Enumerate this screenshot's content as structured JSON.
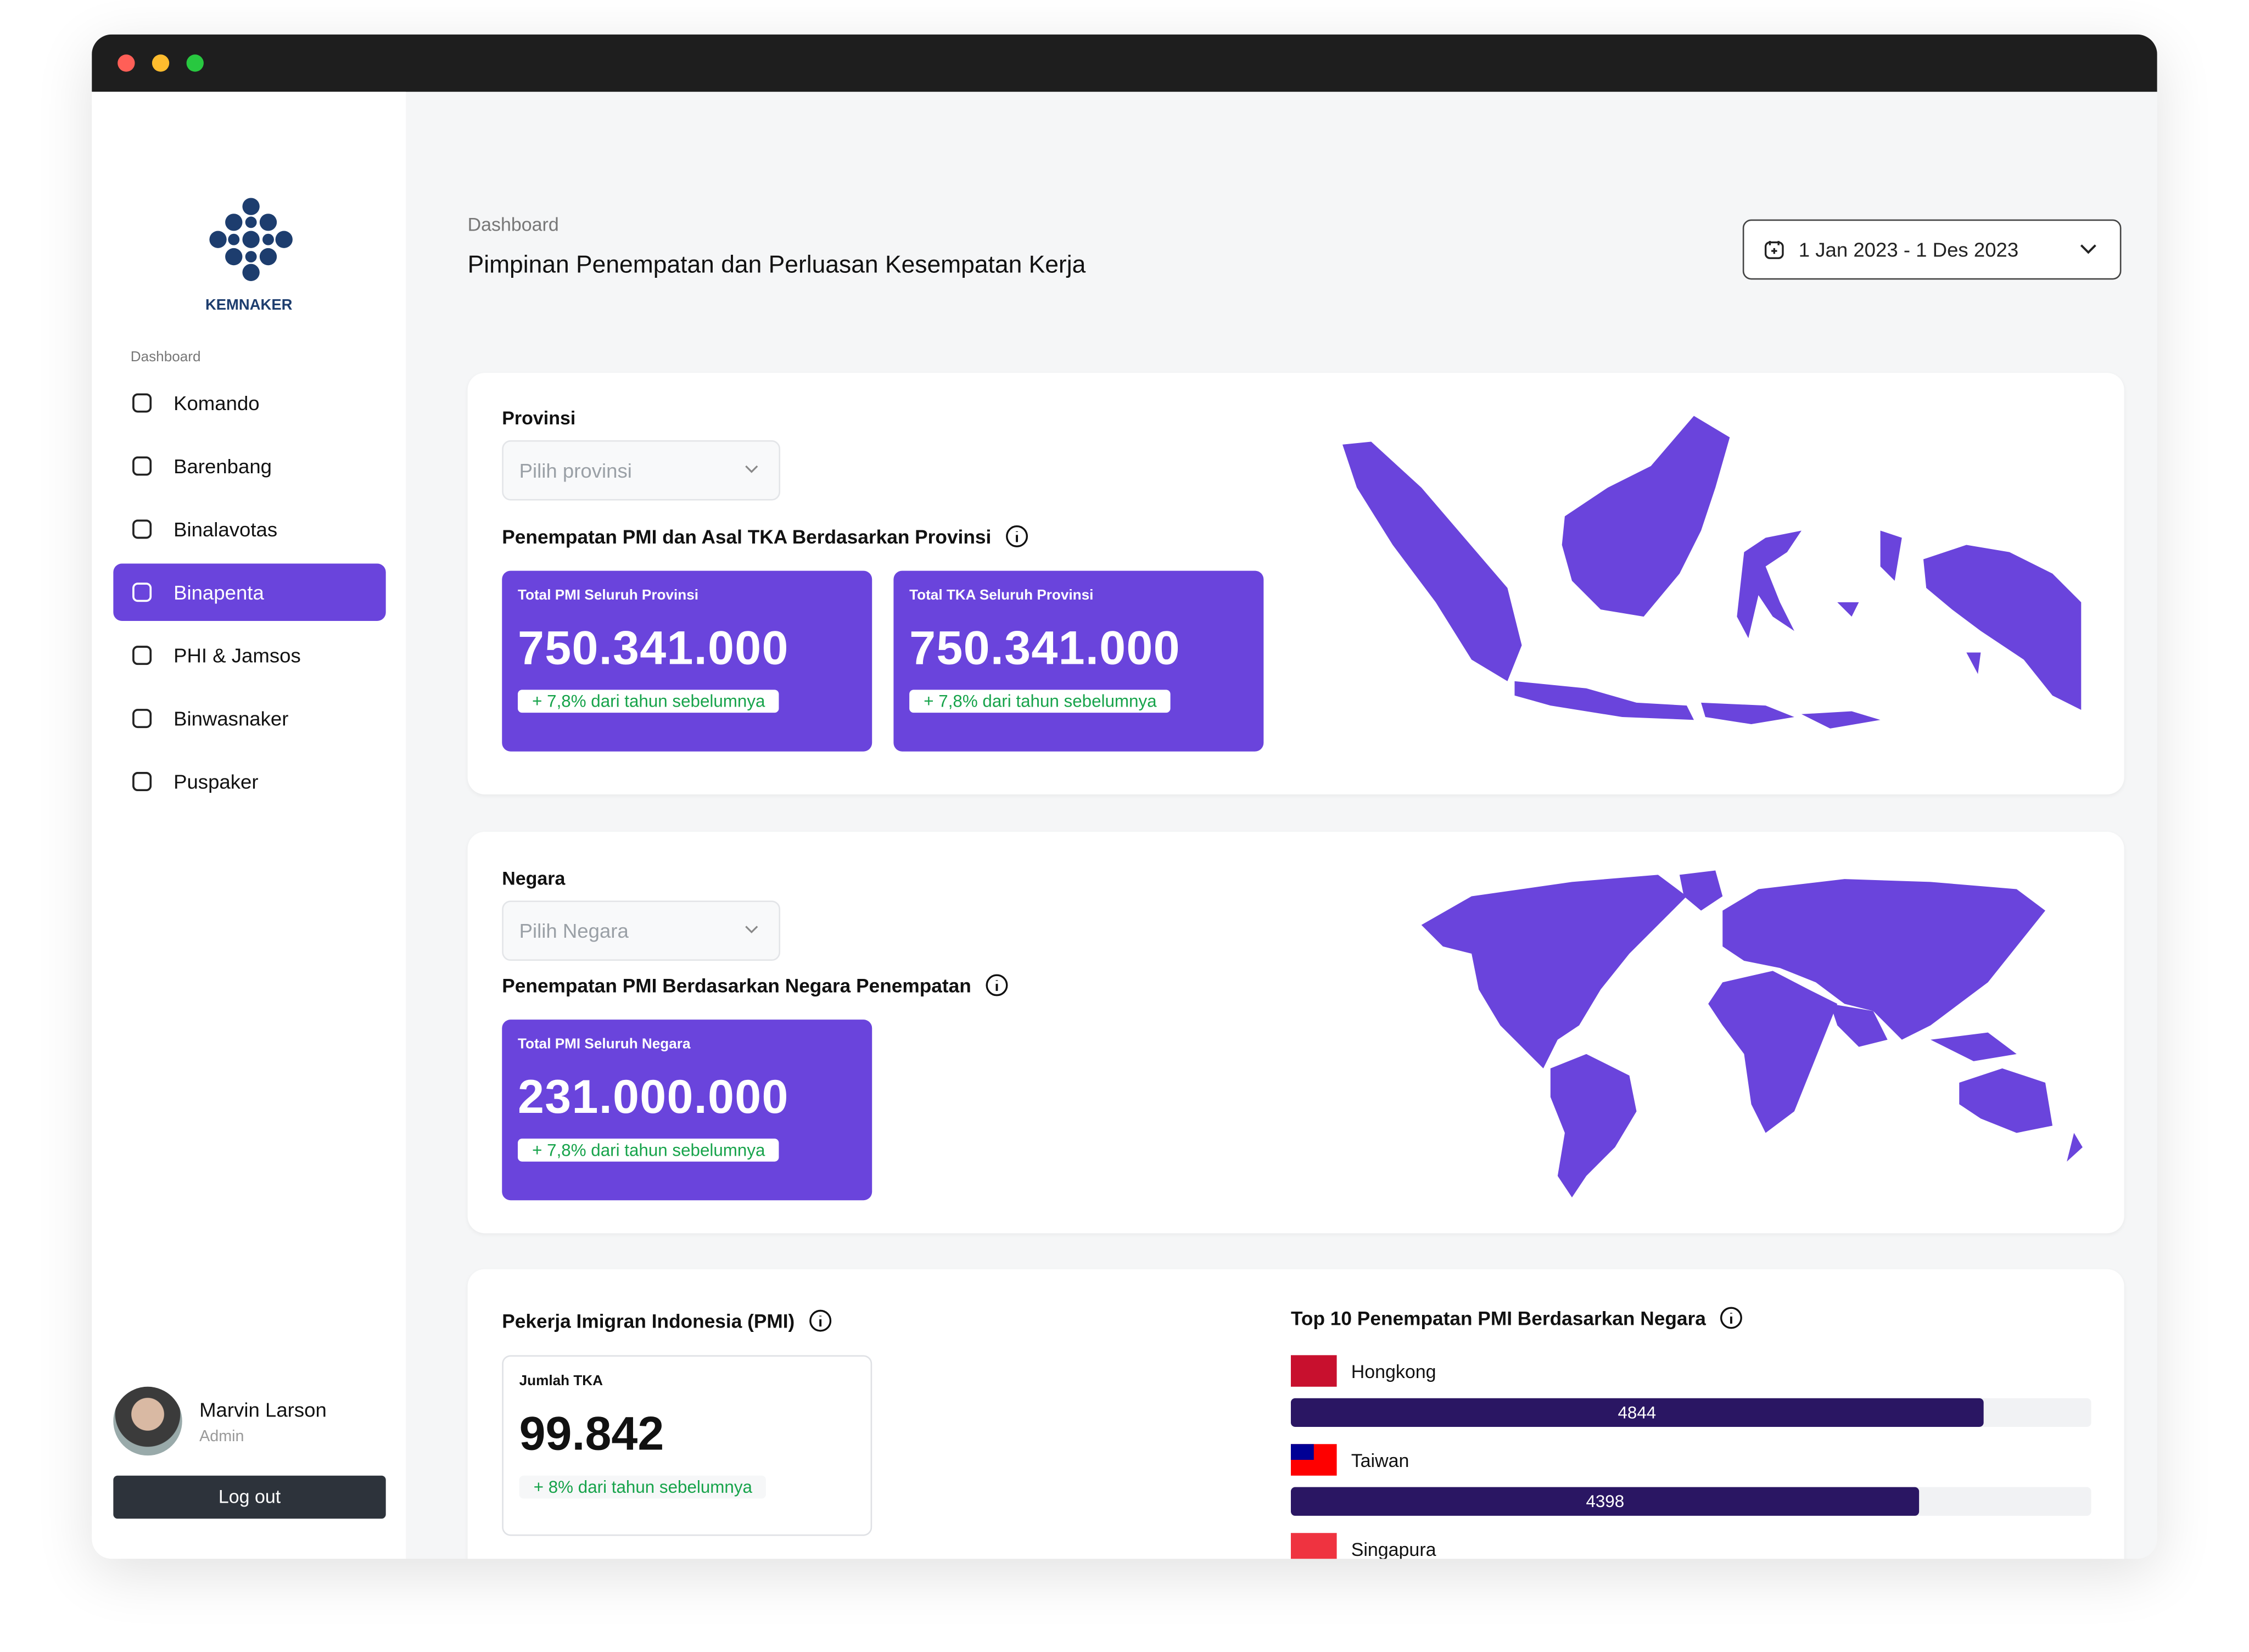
{
  "sidebar": {
    "logo": "KEMNAKER",
    "section": "Dashboard",
    "menu": [
      "Komando",
      "Barenbang",
      "Binalavotas",
      "Binapenta",
      "PHI & Jamsos",
      "Binwasnaker",
      "Puspaker"
    ],
    "active_index": 3,
    "user": {
      "name": "Marvin Larson",
      "role": "Admin"
    },
    "logout": "Log out"
  },
  "header": {
    "breadcrumb": "Dashboard",
    "title": "Pimpinan Penempatan dan Perluasan Kesempatan Kerja",
    "date_range": "1 Jan 2023 - 1 Des 2023"
  },
  "province_card": {
    "label": "Provinsi",
    "placeholder": "Pilih provinsi",
    "title": "Penempatan PMI dan Asal TKA Berdasarkan Provinsi",
    "stats": [
      {
        "label": "Total PMI Seluruh Provinsi",
        "value": "750.341.000",
        "change": "+  7,8% dari tahun sebelumnya"
      },
      {
        "label": "Total TKA Seluruh Provinsi",
        "value": "750.341.000",
        "change": "+  7,8% dari tahun sebelumnya"
      }
    ]
  },
  "country_card": {
    "label": "Negara",
    "placeholder": "Pilih Negara",
    "title": "Penempatan PMI Berdasarkan Negara Penempatan",
    "stats": [
      {
        "label": "Total PMI Seluruh Negara",
        "value": "231.000.000",
        "change": "+  7,8% dari tahun sebelumnya"
      }
    ]
  },
  "pmi_card": {
    "title": "Pekerja Imigran Indonesia (PMI)",
    "stat": {
      "label": "Jumlah TKA",
      "value": "99.842",
      "change": "+  8% dari tahun sebelumnya"
    }
  },
  "top10": {
    "title": "Top 10 Penempatan PMI Berdasarkan Negara",
    "items": [
      {
        "name": "Hongkong",
        "value": 4844
      },
      {
        "name": "Taiwan",
        "value": 4398
      },
      {
        "name": "Singapura"
      }
    ]
  }
}
